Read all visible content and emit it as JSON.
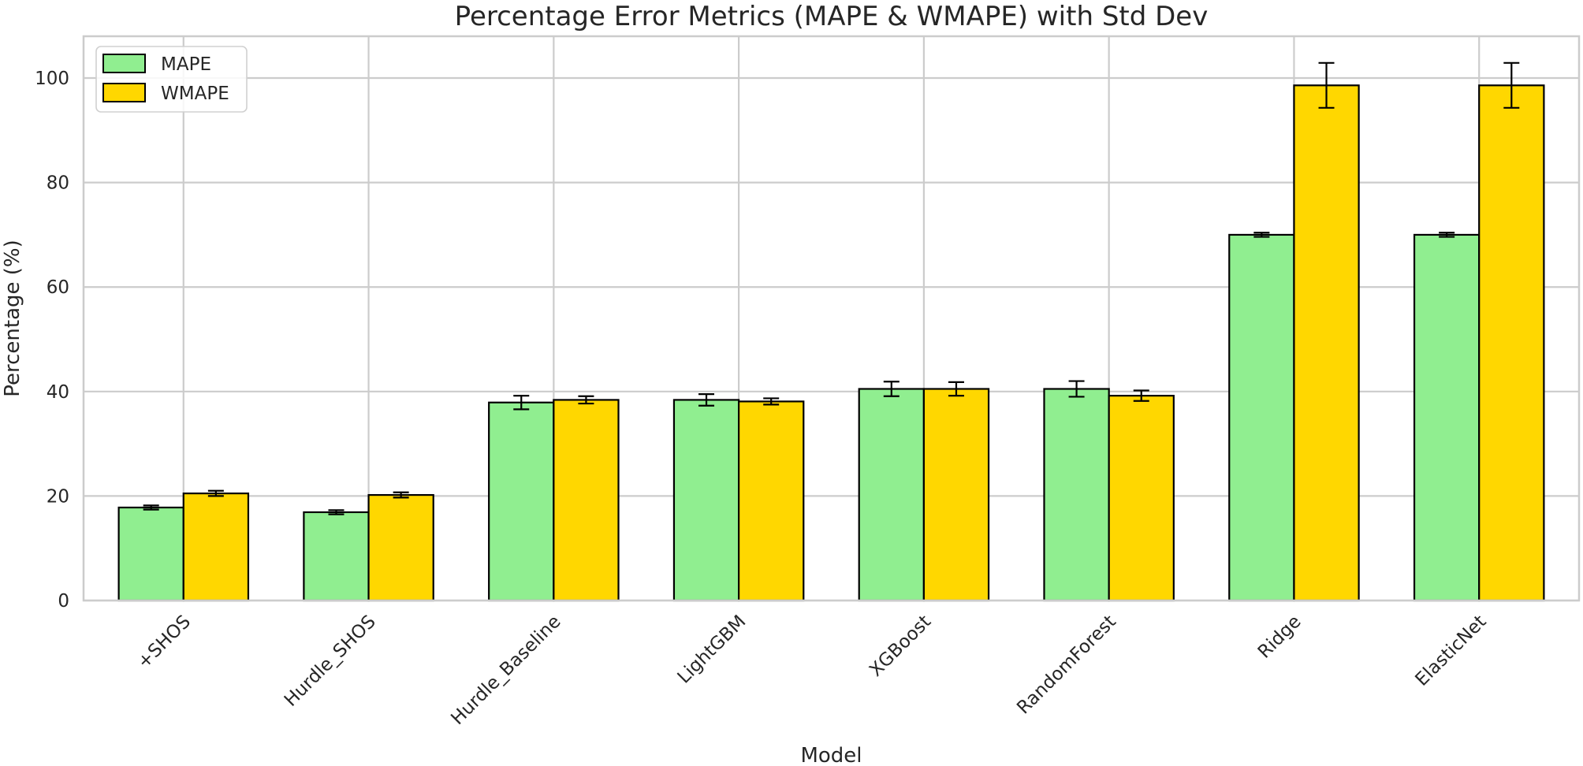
{
  "chart_data": {
    "type": "bar",
    "title": "Percentage Error Metrics (MAPE & WMAPE) with Std Dev",
    "xlabel": "Model",
    "ylabel": "Percentage (%)",
    "ylim": [
      0,
      108
    ],
    "yticks": [
      0,
      20,
      40,
      60,
      80,
      100
    ],
    "grid": true,
    "legend_position": "top-left",
    "categories": [
      "+SHOS",
      "Hurdle_SHOS",
      "Hurdle_Baseline",
      "LightGBM",
      "XGBoost",
      "RandomForest",
      "Ridge",
      "ElasticNet"
    ],
    "series": [
      {
        "name": "MAPE",
        "color": "#90ee90",
        "values": [
          17.8,
          16.9,
          37.9,
          38.4,
          40.5,
          40.5,
          70.0,
          70.0
        ],
        "errors": [
          0.4,
          0.4,
          1.3,
          1.1,
          1.4,
          1.5,
          0.4,
          0.4
        ]
      },
      {
        "name": "WMAPE",
        "color": "#ffd700",
        "values": [
          20.5,
          20.2,
          38.4,
          38.1,
          40.5,
          39.2,
          98.6,
          98.6
        ],
        "errors": [
          0.5,
          0.5,
          0.7,
          0.6,
          1.3,
          1.0,
          4.3,
          4.3
        ]
      }
    ]
  }
}
